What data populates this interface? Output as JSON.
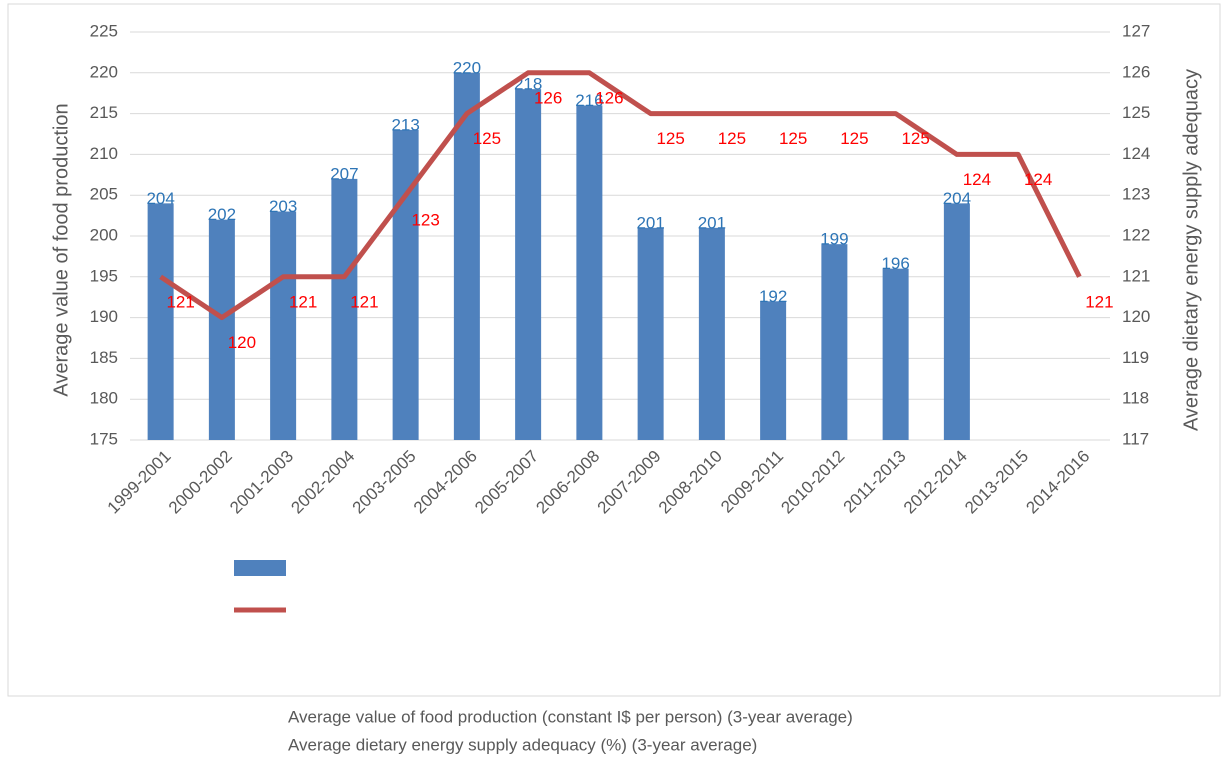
{
  "chart_data": {
    "type": "bar-line",
    "categories": [
      "1999-2001",
      "2000-2002",
      "2001-2003",
      "2002-2004",
      "2003-2005",
      "2004-2006",
      "2005-2007",
      "2006-2008",
      "2007-2009",
      "2008-2010",
      "2009-2011",
      "2010-2012",
      "2011-2013",
      "2012-2014",
      "2013-2015",
      "2014-2016"
    ],
    "series": [
      {
        "name": "Average value of food production (constant I$ per person) (3-year average)",
        "type": "bar",
        "color": "#4f81bd",
        "label_color": "#2e75b6",
        "values": [
          204,
          202,
          203,
          207,
          213,
          220,
          218,
          216,
          201,
          201,
          192,
          199,
          196,
          204,
          null,
          null
        ]
      },
      {
        "name": "Average dietary energy supply adequacy (%) (3-year average)",
        "type": "line",
        "axis": "y2",
        "color": "#c0504d",
        "label_color": "#ff0000",
        "values": [
          121,
          120,
          121,
          121,
          123,
          125,
          126,
          126,
          125,
          125,
          125,
          125,
          125,
          124,
          124,
          121
        ]
      }
    ],
    "ylabel": "Average value of food production",
    "y2label": "Average dietary energy supply adequacy",
    "ylim": [
      175,
      225
    ],
    "yticks": [
      175,
      180,
      185,
      190,
      195,
      200,
      205,
      210,
      215,
      220,
      225
    ],
    "y2lim": [
      117,
      127
    ],
    "y2ticks": [
      117,
      118,
      119,
      120,
      121,
      122,
      123,
      124,
      125,
      126,
      127
    ],
    "grid": true
  }
}
